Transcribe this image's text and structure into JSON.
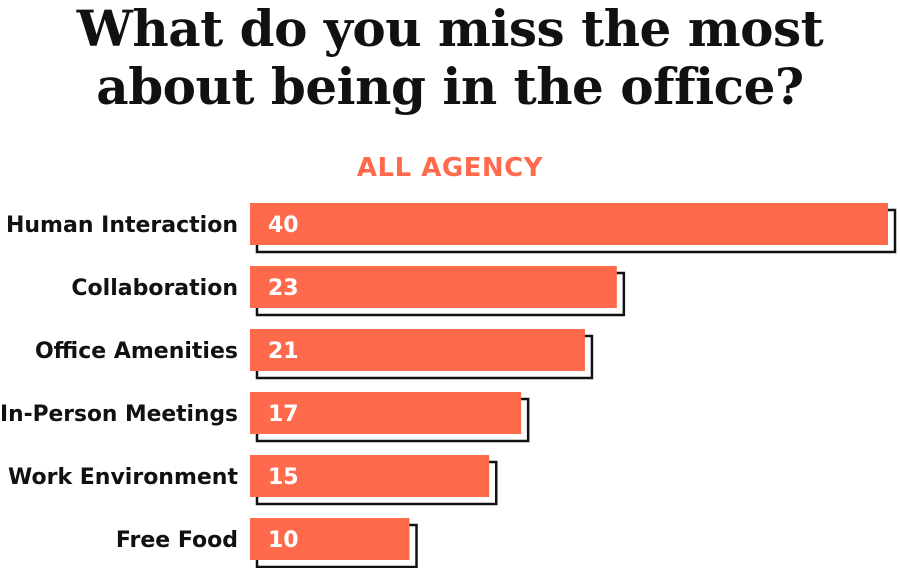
{
  "colors": {
    "bar": "#ff6a4d",
    "shadow": "#111111",
    "subtitle": "#ff6a4d"
  },
  "chart_data": {
    "type": "bar",
    "orientation": "horizontal",
    "title": "What do you miss the most about being in the office?",
    "subtitle": "ALL AGENCY",
    "categories": [
      "Human Interaction",
      "Collaboration",
      "Office Amenities",
      "In-Person Meetings",
      "Work Environment",
      "Free Food"
    ],
    "values": [
      40,
      23,
      21,
      17,
      15,
      10
    ],
    "xlim": [
      0,
      40
    ],
    "grid": false,
    "legend": "none"
  }
}
